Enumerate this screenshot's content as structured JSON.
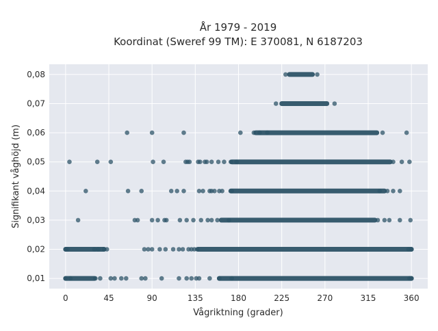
{
  "chart_data": {
    "type": "scatter",
    "title_line1": "År 1979 - 2019",
    "title_line2": "Koordinat (Sweref 99 TM): E 370081, N 6187203",
    "xlabel": "Vågriktning (grader)",
    "ylabel": "Signifikant våghöjd (m)",
    "xlim": [
      -17,
      377
    ],
    "ylim": [
      0.0065,
      0.0835
    ],
    "x_ticks": [
      0,
      45,
      90,
      135,
      180,
      225,
      270,
      315,
      360
    ],
    "x_tick_labels": [
      "0",
      "45",
      "90",
      "135",
      "180",
      "225",
      "270",
      "315",
      "360"
    ],
    "y_ticks": [
      0.01,
      0.02,
      0.03,
      0.04,
      0.05,
      0.06,
      0.07,
      0.08
    ],
    "y_tick_labels": [
      "0,01",
      "0,02",
      "0,03",
      "0,04",
      "0,05",
      "0,06",
      "0,07",
      "0,08"
    ],
    "grid": true,
    "marker_color": "#2e5468",
    "background_color": "#e5e8ef",
    "grid_color": "#ffffff",
    "series": [
      {
        "y": 0.08,
        "x": [
          229,
          262
        ]
      },
      {
        "y": 0.07,
        "x": [
          219,
          280
        ]
      },
      {
        "y": 0.06,
        "x": [
          64,
          90,
          123,
          182,
          196,
          202,
          210,
          330,
          355
        ]
      },
      {
        "y": 0.05,
        "x": [
          4,
          33,
          47,
          91,
          102,
          125,
          127,
          129,
          138,
          140,
          145,
          147,
          152,
          159,
          165,
          172,
          178,
          341,
          350,
          358
        ]
      },
      {
        "y": 0.04,
        "x": [
          21,
          65,
          79,
          110,
          116,
          123,
          139,
          143,
          150,
          152,
          155,
          160,
          163,
          173,
          327,
          335,
          341,
          348
        ]
      },
      {
        "y": 0.03,
        "x": [
          13,
          72,
          75,
          90,
          96,
          103,
          105,
          119,
          126,
          133,
          141,
          148,
          152,
          158,
          170,
          325,
          332,
          337,
          348,
          359
        ]
      },
      {
        "y": 0.02,
        "x": [
          0,
          2,
          30,
          34,
          40,
          43,
          82,
          86,
          90,
          98,
          104,
          112,
          118,
          122,
          128,
          131,
          134,
          137,
          357,
          360
        ]
      },
      {
        "y": 0.01,
        "x": [
          0,
          5,
          31,
          36,
          47,
          51,
          58,
          63,
          79,
          83,
          100,
          118,
          126,
          131,
          136,
          139,
          150,
          160,
          173,
          358,
          360
        ]
      }
    ],
    "dense_bands": [
      {
        "y": 0.08,
        "from": 233,
        "to": 257
      },
      {
        "y": 0.07,
        "from": 225,
        "to": 272
      },
      {
        "y": 0.06,
        "from": 198,
        "to": 324
      },
      {
        "y": 0.05,
        "from": 173,
        "to": 338
      },
      {
        "y": 0.04,
        "from": 172,
        "to": 332
      },
      {
        "y": 0.03,
        "from": 162,
        "to": 322
      },
      {
        "y": 0.02,
        "from": 0,
        "to": 40
      },
      {
        "y": 0.02,
        "from": 138,
        "to": 360
      },
      {
        "y": 0.01,
        "from": 0,
        "to": 30
      },
      {
        "y": 0.01,
        "from": 160,
        "to": 360
      }
    ]
  }
}
